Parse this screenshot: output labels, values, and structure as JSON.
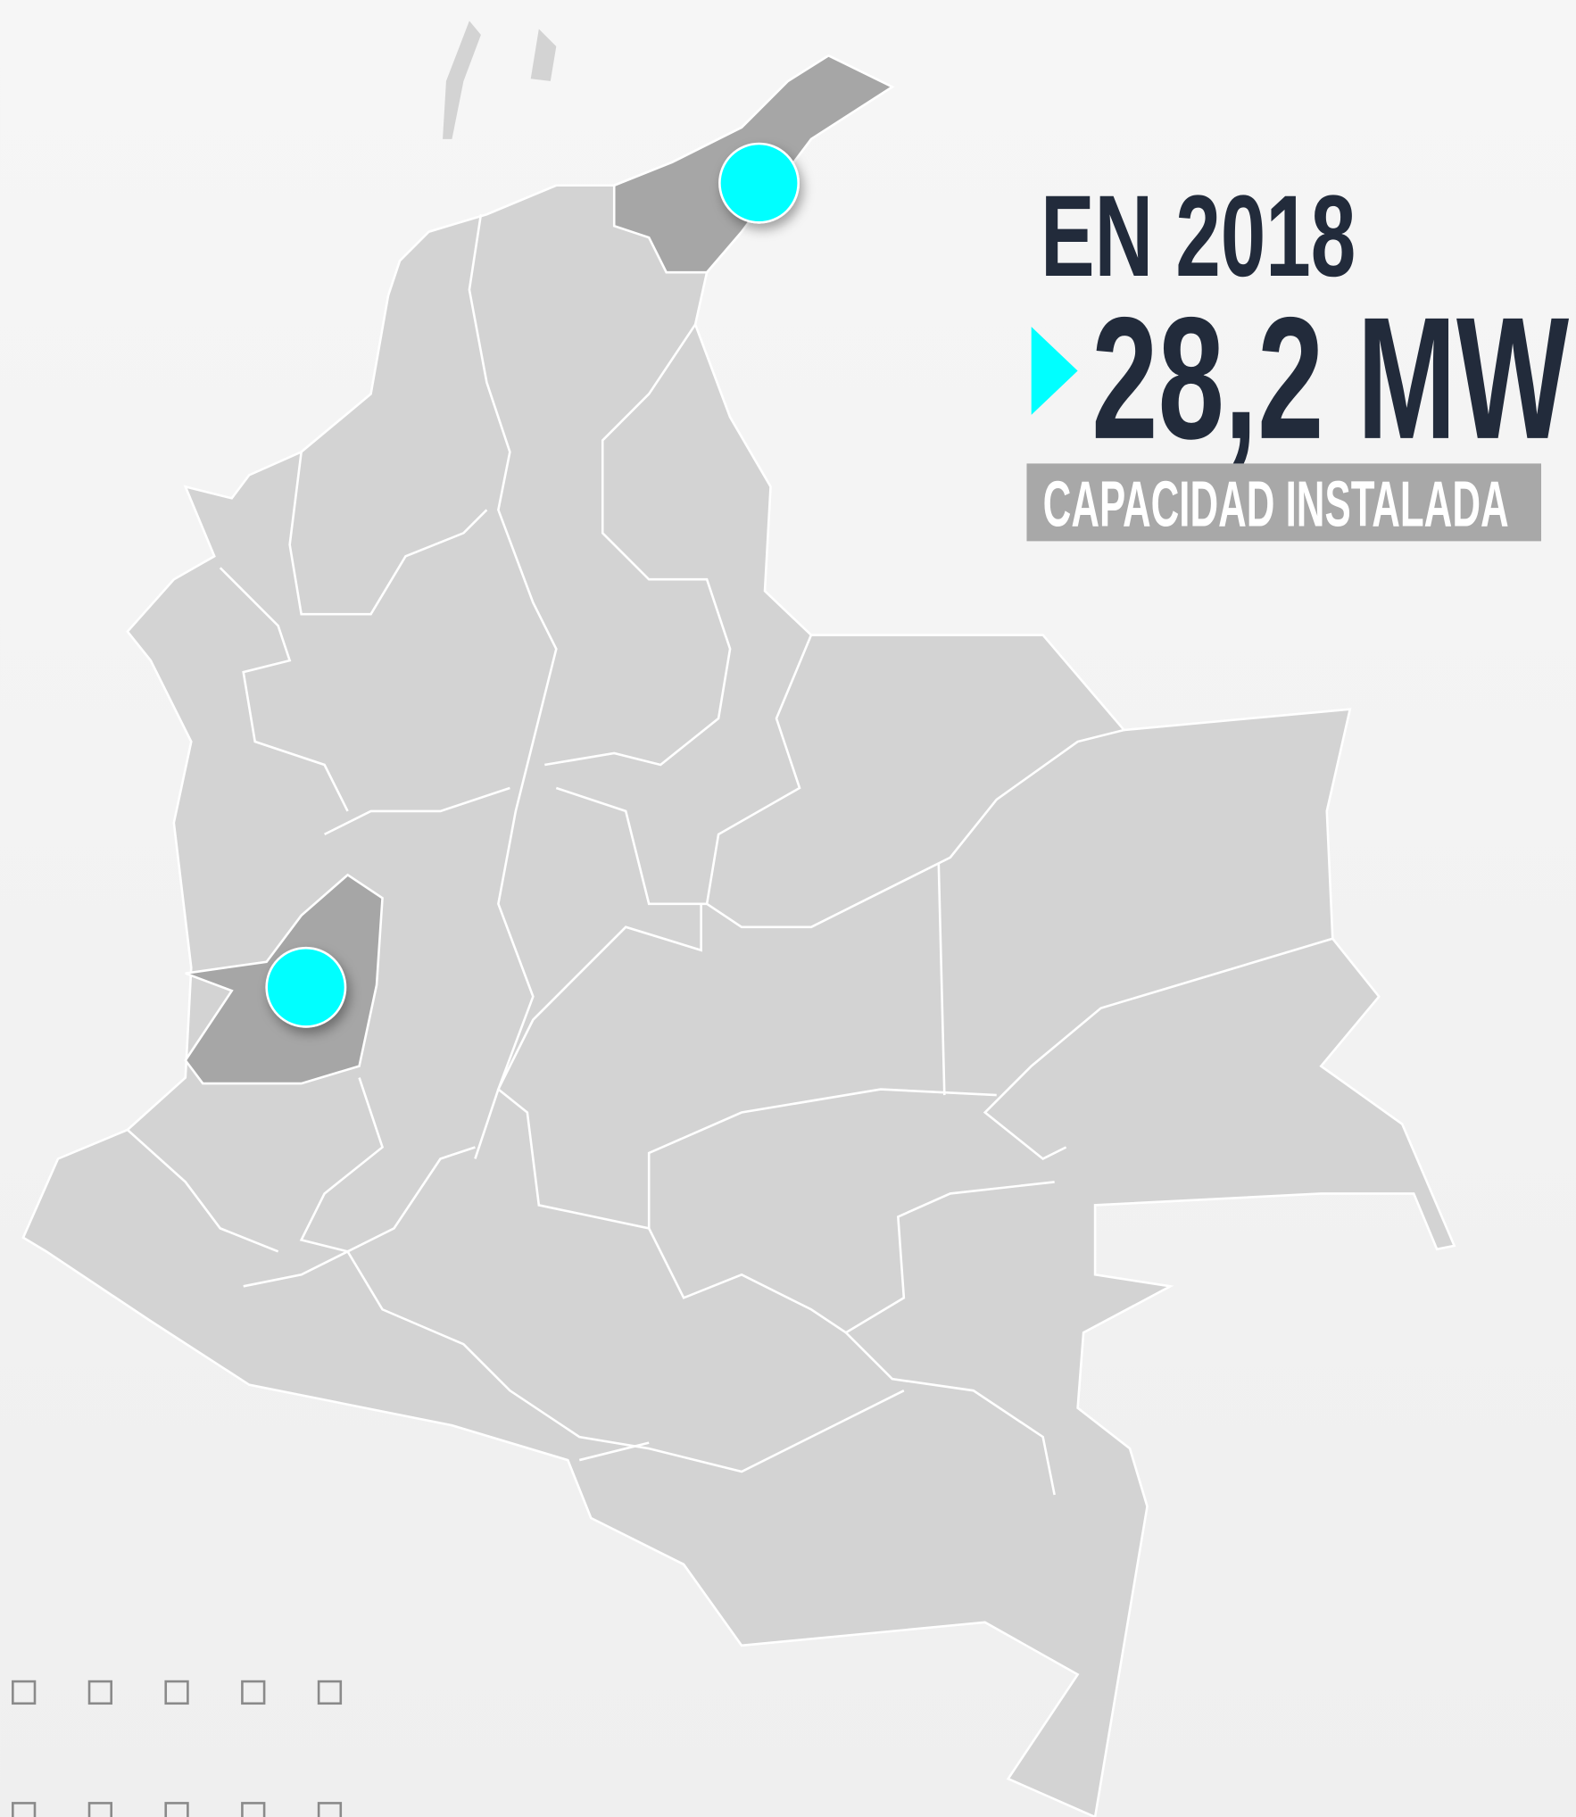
{
  "title": "EN 2018",
  "value": "28,2 MW",
  "label": "CAPACIDAD INSTALADA"
}
